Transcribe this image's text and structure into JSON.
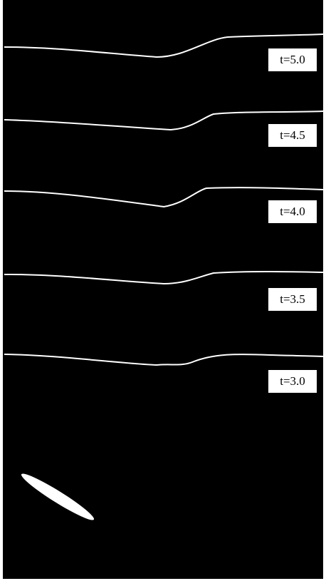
{
  "labels": [
    "t=5.0",
    "t=4.5",
    "t=4.0",
    "t=3.5",
    "t=3.0"
  ]
}
